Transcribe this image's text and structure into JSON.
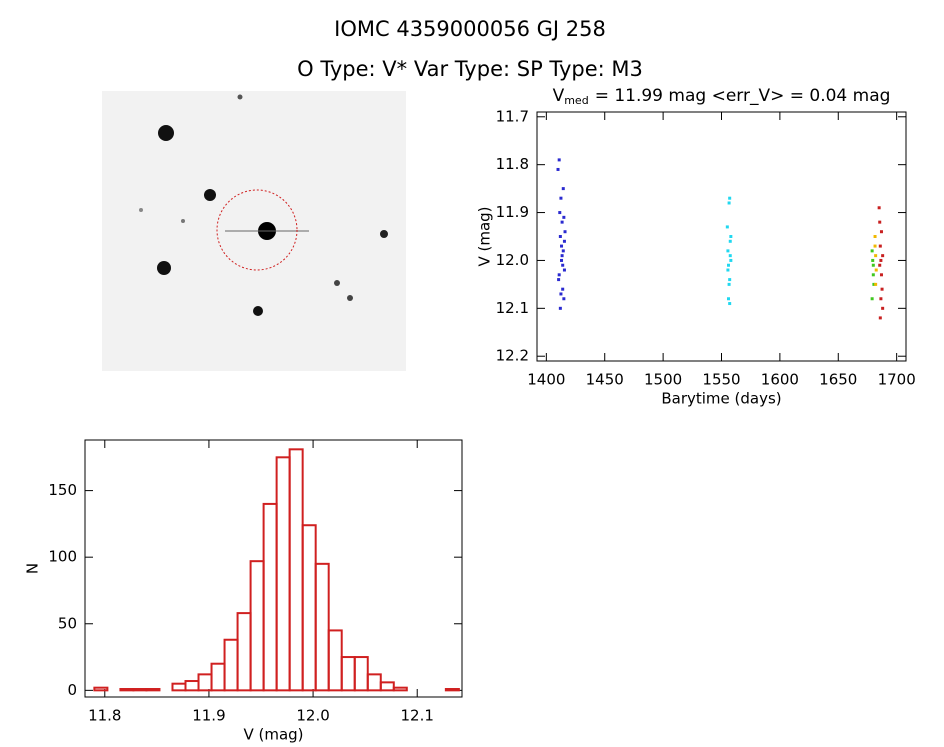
{
  "title": "IOMC 4359000056   GJ   258",
  "subtitle": "O Type: V*  Var Type:   SP Type: M3",
  "chart_data": [
    {
      "type": "scatter",
      "title": "V",
      "title_subscript": "med",
      "title_suffix": "= 11.99 mag <err_V> = 0.04 mag",
      "x_label": "Barytime (days)",
      "y_label": "V (mag)",
      "xlim": [
        1392,
        1708
      ],
      "xticks": [
        1400,
        1450,
        1500,
        1550,
        1600,
        1650,
        1700
      ],
      "ylim": [
        12.21,
        11.69
      ],
      "yticks": [
        11.7,
        11.8,
        11.9,
        {
          "value": 12,
          "label": "12.0"
        },
        12.1,
        12.2
      ],
      "series": [
        {
          "color": "#2a2ad0",
          "x": [
            1410,
            1411,
            1411.5,
            1412,
            1412.5,
            1413,
            1413.5,
            1414,
            1414.5,
            1415,
            1415.5,
            1416,
            1410.5,
            1412,
            1413,
            1414,
            1415,
            1411,
            1413.5,
            1415.5,
            1412.5,
            1414.5
          ],
          "y": [
            11.81,
            11.79,
            11.9,
            11.95,
            11.87,
            12.0,
            11.92,
            12.06,
            11.98,
            12.08,
            12.02,
            11.94,
            12.04,
            12.1,
            11.97,
            12.01,
            11.91,
            12.03,
            11.99,
            11.96,
            12.07,
            11.85
          ]
        },
        {
          "color": "#20d8f0",
          "x": [
            1555,
            1555.5,
            1556,
            1556.5,
            1557,
            1557.5,
            1558,
            1556,
            1557,
            1555.5,
            1558,
            1556.5,
            1557.5,
            1557
          ],
          "y": [
            11.93,
            11.98,
            12.01,
            11.88,
            12.04,
            11.96,
            12.0,
            12.08,
            11.87,
            12.02,
            11.95,
            12.05,
            11.99,
            12.09
          ]
        },
        {
          "color": "#40c820",
          "x": [
            1679,
            1679.5,
            1680,
            1680.5,
            1679,
            1680
          ],
          "y": [
            11.98,
            12.0,
            12.03,
            12.05,
            12.08,
            12.01
          ]
        },
        {
          "color": "#f0b800",
          "x": [
            1681.5,
            1682,
            1682.5,
            1682,
            1681.5
          ],
          "y": [
            11.95,
            11.99,
            12.02,
            12.05,
            11.97
          ]
        },
        {
          "color": "#c82020",
          "x": [
            1685,
            1685.5,
            1686,
            1686.5,
            1687,
            1687.5,
            1688,
            1686,
            1687,
            1685.5,
            1688,
            1686.5
          ],
          "y": [
            11.89,
            11.92,
            11.97,
            12.0,
            12.03,
            12.06,
            12.1,
            12.12,
            11.94,
            12.01,
            11.99,
            12.08
          ]
        }
      ]
    },
    {
      "type": "histogram",
      "x_label": "V (mag)",
      "y_label": "N",
      "color": "#d02020",
      "xlim": [
        11.781,
        12.143
      ],
      "xticks": [
        11.8,
        11.9,
        {
          "value": 12,
          "label": "12.0"
        },
        12.1
      ],
      "ylim": [
        -5,
        188
      ],
      "yticks": [
        0,
        50,
        100,
        150
      ],
      "bins": [
        11.79,
        11.8025,
        11.815,
        11.8275,
        11.84,
        11.8525,
        11.865,
        11.8775,
        11.89,
        11.9025,
        11.915,
        11.9275,
        11.94,
        11.9525,
        11.965,
        11.9775,
        11.99,
        12.0025,
        12.015,
        12.0275,
        12.04,
        12.0525,
        12.065,
        12.0775,
        12.09,
        12.1025,
        12.115,
        12.1275,
        12.14
      ],
      "counts": [
        2,
        0,
        1,
        1,
        1,
        0,
        5,
        7,
        12,
        20,
        38,
        58,
        97,
        140,
        175,
        181,
        124,
        95,
        45,
        25,
        25,
        12,
        6,
        2,
        0,
        0,
        0,
        1
      ]
    }
  ]
}
